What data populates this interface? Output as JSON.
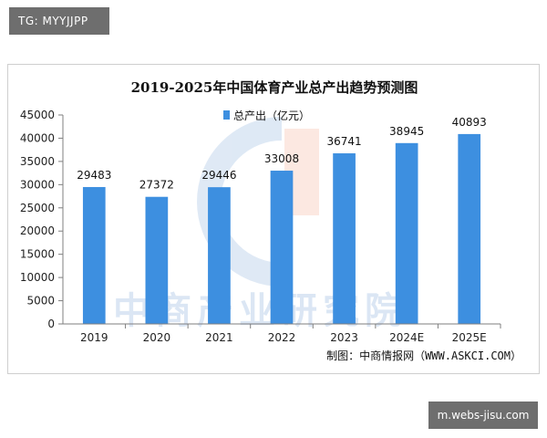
{
  "tags": {
    "top": "TG: MYYJJPP",
    "bottom": "m.webs-jisu.com"
  },
  "watermark": {
    "text": "中商产业研究院"
  },
  "source": "制图：中商情报网（WWW.ASKCI.COM）",
  "colors": {
    "bar": "#3d8fe0",
    "grid": "#d9d9d9",
    "axis": "#7f7f7f"
  },
  "chart_data": {
    "type": "bar",
    "title": "2019-2025年中国体育产业总产出趋势预测图",
    "categories": [
      "2019",
      "2020",
      "2021",
      "2022",
      "2023",
      "2024E",
      "2025E"
    ],
    "series": [
      {
        "name": "总产出（亿元）",
        "values": [
          29483,
          27372,
          29446,
          33008,
          36741,
          38945,
          40893
        ]
      }
    ],
    "data_labels": [
      "29483",
      "27372",
      "29446",
      "33008",
      "36741",
      "38945",
      "40893"
    ],
    "ylim": [
      0,
      45000
    ],
    "yticks": [
      "0",
      "5000",
      "10000",
      "15000",
      "20000",
      "25000",
      "30000",
      "35000",
      "40000",
      "45000"
    ],
    "grid": false,
    "legend": "top-center"
  }
}
